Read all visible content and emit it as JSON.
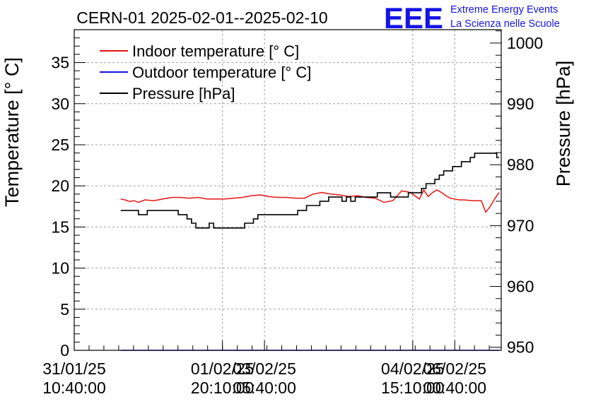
{
  "chart_data": {
    "type": "line",
    "title": "CERN-01 2025-02-01--2025-02-10",
    "logo": {
      "text": "EEE",
      "line1": "Extreme Energy Events",
      "line2": "La Scienza nelle Scuole",
      "color": "#1414e6"
    },
    "ylabel_left": "Temperature [° C]",
    "ylabel_right": "Pressure [hPa]",
    "ylim_left": [
      0,
      39
    ],
    "ylim_right": [
      949.5,
      1002.2
    ],
    "yticks_left": [
      "0",
      "5",
      "10",
      "15",
      "20",
      "25",
      "30",
      "35"
    ],
    "yticks_right": [
      "950",
      "960",
      "970",
      "980",
      "990",
      "1000"
    ],
    "x_range_hours": [
      0,
      96.5
    ],
    "x_ticks": [
      {
        "hours": 0,
        "line1": "31/01/25",
        "line2": "10:40:00"
      },
      {
        "hours": 33.5,
        "line1": "01/02/25",
        "line2": "20:10:00"
      },
      {
        "hours": 43,
        "line1": "03/02/25",
        "line2": "05:40:00"
      },
      {
        "hours": 76.5,
        "line1": "04/02/25",
        "line2": "15:10:00"
      },
      {
        "hours": 86,
        "line1": "06/02/25",
        "line2": "00:40:00"
      }
    ],
    "grid": true,
    "legend_position": "top-left",
    "series": [
      {
        "name": "Indoor temperature [° C]",
        "color": "#e61414",
        "axis": "left",
        "x": [
          10.5,
          11.5,
          12.5,
          13.5,
          14.5,
          16,
          18,
          20,
          22,
          24,
          26,
          28,
          30,
          32,
          34,
          36,
          38,
          40,
          42,
          44,
          46,
          48,
          50,
          52,
          54,
          56,
          58,
          60,
          62,
          64,
          66,
          68,
          70,
          72,
          74,
          76,
          78,
          79,
          80,
          81,
          82,
          83,
          84,
          85,
          86,
          87,
          88,
          90,
          92,
          93,
          94,
          95,
          96
        ],
        "y": [
          18.4,
          18.3,
          18.1,
          18.2,
          18.0,
          18.3,
          18.2,
          18.4,
          18.6,
          18.6,
          18.5,
          18.6,
          18.4,
          18.4,
          18.4,
          18.5,
          18.6,
          18.8,
          18.9,
          18.7,
          18.6,
          18.6,
          18.5,
          18.5,
          19.0,
          19.2,
          19.0,
          18.9,
          18.7,
          18.8,
          18.6,
          18.5,
          18.0,
          18.2,
          19.4,
          19.2,
          18.4,
          19.5,
          18.7,
          19.2,
          19.5,
          19.2,
          18.8,
          18.5,
          18.4,
          18.3,
          18.3,
          18.2,
          18.2,
          16.8,
          17.5,
          18.4,
          19.2
        ]
      },
      {
        "name": "Outdoor temperature [° C]",
        "color": "#1414e6",
        "axis": "left",
        "x": [
          10.5,
          96
        ],
        "y": [
          0,
          0
        ]
      },
      {
        "name": "Pressure [hPa]",
        "color": "#000000",
        "axis": "right",
        "x": [
          10.5,
          11.5,
          12.5,
          13.5,
          14.5,
          15.5,
          16.5,
          17.5,
          18.5,
          19.5,
          20.5,
          21.5,
          22.5,
          23.5,
          24.5,
          25.5,
          26.5,
          27.5,
          28.5,
          29.5,
          30.5,
          31.5,
          32.5,
          33.5,
          34.5,
          35.5,
          36.5,
          37.5,
          38.5,
          39.5,
          40.5,
          41.5,
          42.5,
          43.5,
          44.5,
          45.5,
          46.5,
          47.5,
          48.5,
          49.5,
          50.5,
          51.5,
          52.5,
          53.5,
          54.5,
          55.5,
          56.5,
          57.5,
          58.5,
          59.5,
          60.5,
          61.5,
          62.5,
          63.5,
          64.5,
          65.5,
          66.5,
          67.5,
          68.5,
          69.5,
          70.5,
          71.5,
          72.5,
          73.5,
          74.5,
          75.5,
          76.5,
          77.5,
          78.5,
          79.5,
          80.5,
          81.5,
          82.5,
          83.5,
          84.5,
          85.5,
          86.5,
          87.5,
          88.5,
          89.5,
          90.5,
          91.5,
          92.5,
          93.5,
          94.5,
          95.5
        ],
        "y": [
          972.5,
          972.5,
          972.5,
          972.5,
          971.8,
          971.8,
          972.5,
          972.5,
          972.5,
          972.5,
          972.5,
          972.5,
          972.5,
          971.8,
          971.8,
          971.1,
          970.4,
          969.6,
          969.6,
          969.6,
          970.4,
          969.6,
          969.6,
          969.6,
          969.6,
          969.6,
          969.6,
          969.6,
          970.4,
          970.4,
          971.1,
          971.8,
          971.8,
          971.8,
          971.8,
          971.8,
          971.8,
          971.8,
          971.8,
          971.8,
          972.5,
          972.5,
          973.3,
          973.3,
          973.3,
          974.0,
          974.0,
          974.7,
          974.7,
          974.7,
          974.0,
          974.7,
          974.0,
          974.7,
          974.7,
          974.7,
          974.7,
          974.7,
          975.4,
          975.4,
          975.4,
          974.7,
          974.7,
          974.7,
          974.7,
          975.4,
          975.4,
          975.4,
          976.1,
          976.9,
          976.9,
          977.6,
          978.3,
          979.0,
          979.0,
          979.7,
          979.7,
          980.5,
          980.5,
          981.2,
          981.9,
          981.9,
          981.9,
          981.9,
          981.9,
          981.2
        ]
      }
    ]
  }
}
